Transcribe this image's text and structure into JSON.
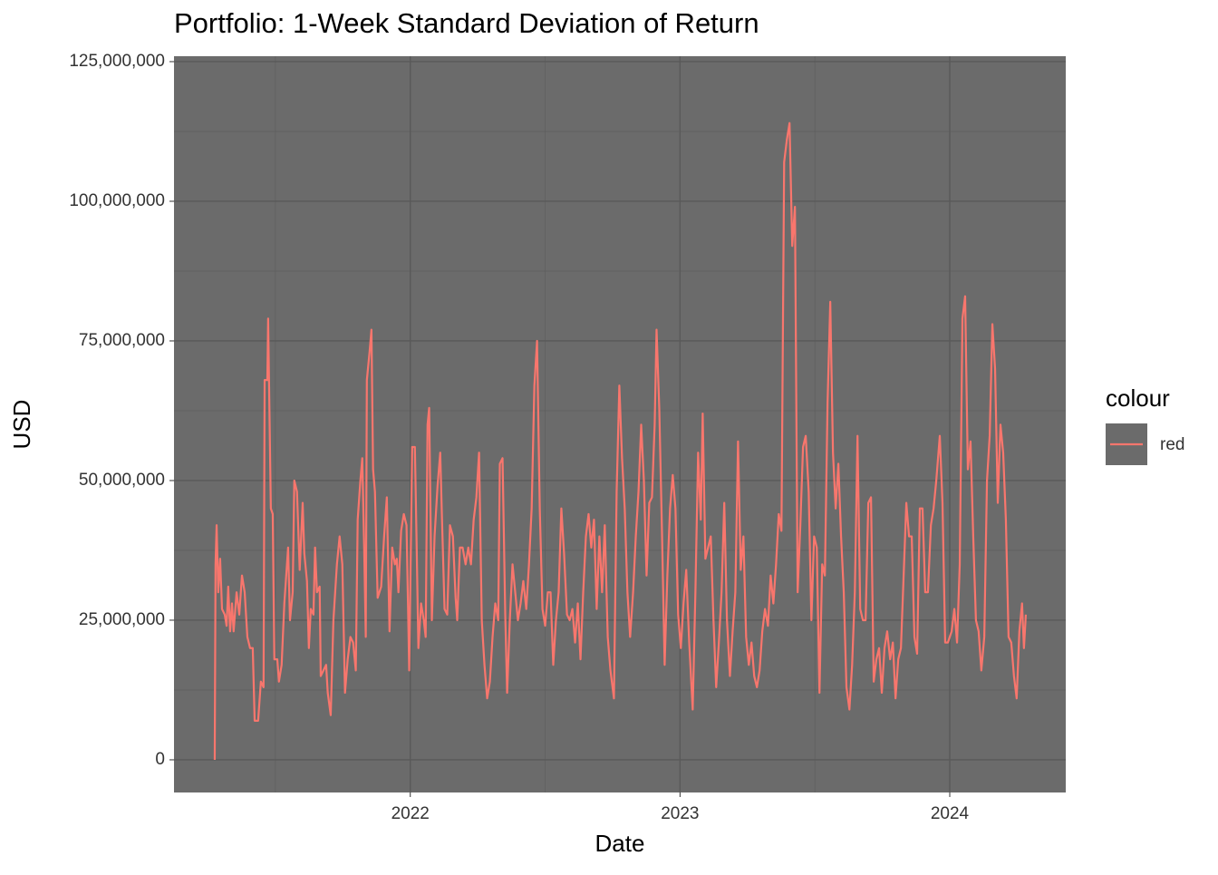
{
  "chart_data": {
    "type": "line",
    "title": "Portfolio: 1-Week Standard Deviation of Return",
    "x_label": "Date",
    "y_label": "USD",
    "legend_title": "colour",
    "legend_position": "right",
    "grid": true,
    "background": "#6b6b6b",
    "grid_color": "#595959",
    "xlim": [
      2021.124,
      2024.43
    ],
    "xticks": [
      2022,
      2023,
      2024
    ],
    "ylim": [
      -5850000,
      125970000
    ],
    "yticks": [
      {
        "value": 0,
        "label": "0"
      },
      {
        "value": 25000000,
        "label": "25,000,000"
      },
      {
        "value": 50000000,
        "label": "50,000,000"
      },
      {
        "value": 75000000,
        "label": "75,000,000"
      },
      {
        "value": 100000000,
        "label": "100,000,000"
      },
      {
        "value": 125000000,
        "label": "125,000,000"
      }
    ],
    "x": [
      2021.275,
      2021.278,
      2021.282,
      2021.288,
      2021.295,
      2021.302,
      2021.312,
      2021.319,
      2021.325,
      2021.332,
      2021.339,
      2021.345,
      2021.356,
      2021.366,
      2021.376,
      2021.386,
      2021.396,
      2021.406,
      2021.416,
      2021.423,
      2021.436,
      2021.446,
      2021.456,
      2021.46,
      2021.47,
      2021.473,
      2021.483,
      2021.49,
      2021.496,
      2021.507,
      2021.513,
      2021.523,
      2021.533,
      2021.547,
      2021.554,
      2021.564,
      2021.57,
      2021.58,
      2021.59,
      2021.601,
      2021.607,
      2021.617,
      2021.624,
      2021.631,
      2021.641,
      2021.647,
      2021.654,
      2021.664,
      2021.668,
      2021.678,
      2021.688,
      2021.694,
      2021.705,
      2021.715,
      2021.728,
      2021.738,
      2021.748,
      2021.758,
      2021.768,
      2021.778,
      2021.788,
      2021.798,
      2021.805,
      2021.815,
      2021.822,
      2021.829,
      2021.835,
      2021.839,
      2021.849,
      2021.856,
      2021.862,
      2021.869,
      2021.879,
      2021.892,
      2021.903,
      2021.913,
      2021.923,
      2021.933,
      2021.943,
      2021.95,
      2021.956,
      2021.966,
      2021.976,
      2021.986,
      2021.996,
      2022.007,
      2022.017,
      2022.023,
      2022.03,
      2022.04,
      2022.05,
      2022.057,
      2022.064,
      2022.07,
      2022.08,
      2022.09,
      2022.101,
      2022.111,
      2022.117,
      2022.127,
      2022.137,
      2022.147,
      2022.158,
      2022.168,
      2022.174,
      2022.184,
      2022.194,
      2022.205,
      2022.215,
      2022.225,
      2022.235,
      2022.245,
      2022.255,
      2022.265,
      2022.275,
      2022.285,
      2022.295,
      2022.305,
      2022.315,
      2022.326,
      2022.332,
      2022.342,
      2022.352,
      2022.359,
      2022.369,
      2022.379,
      2022.389,
      2022.399,
      2022.409,
      2022.419,
      2022.43,
      2022.44,
      2022.45,
      2022.46,
      2022.47,
      2022.48,
      2022.49,
      2022.5,
      2022.51,
      2022.52,
      2022.53,
      2022.54,
      2022.55,
      2022.56,
      2022.57,
      2022.581,
      2022.591,
      2022.601,
      2022.611,
      2022.621,
      2022.631,
      2022.641,
      2022.651,
      2022.661,
      2022.671,
      2022.681,
      2022.691,
      2022.701,
      2022.711,
      2022.721,
      2022.732,
      2022.742,
      2022.755,
      2022.765,
      2022.775,
      2022.785,
      2022.795,
      2022.805,
      2022.815,
      2022.826,
      2022.836,
      2022.846,
      2022.856,
      2022.866,
      2022.876,
      2022.886,
      2022.896,
      2022.906,
      2022.913,
      2022.923,
      2022.933,
      2022.943,
      2022.953,
      2022.963,
      2022.973,
      2022.983,
      2022.993,
      2023.003,
      2023.013,
      2023.023,
      2023.034,
      2023.047,
      2023.057,
      2023.067,
      2023.077,
      2023.084,
      2023.094,
      2023.104,
      2023.114,
      2023.124,
      2023.134,
      2023.144,
      2023.154,
      2023.164,
      2023.174,
      2023.185,
      2023.195,
      2023.205,
      2023.215,
      2023.225,
      2023.235,
      2023.245,
      2023.255,
      2023.265,
      2023.275,
      2023.285,
      2023.295,
      2023.305,
      2023.315,
      2023.326,
      2023.336,
      2023.346,
      2023.356,
      2023.366,
      2023.376,
      2023.386,
      2023.396,
      2023.406,
      2023.416,
      2023.426,
      2023.436,
      2023.446,
      2023.456,
      2023.466,
      2023.477,
      2023.487,
      2023.497,
      2023.507,
      2023.517,
      2023.527,
      2023.537,
      2023.547,
      2023.557,
      2023.567,
      2023.577,
      2023.587,
      2023.597,
      2023.607,
      2023.617,
      2023.628,
      2023.638,
      2023.648,
      2023.658,
      2023.668,
      2023.678,
      2023.688,
      2023.698,
      2023.708,
      2023.718,
      2023.728,
      2023.738,
      2023.748,
      2023.758,
      2023.768,
      2023.779,
      2023.789,
      2023.799,
      2023.809,
      2023.819,
      2023.829,
      2023.839,
      2023.849,
      2023.859,
      2023.869,
      2023.879,
      2023.889,
      2023.899,
      2023.909,
      2023.919,
      2023.93,
      2023.94,
      2023.95,
      2023.963,
      2023.973,
      2023.983,
      2023.993,
      2024.007,
      2024.017,
      2024.027,
      2024.037,
      2024.047,
      2024.057,
      2024.067,
      2024.077,
      2024.087,
      2024.097,
      2024.107,
      2024.117,
      2024.128,
      2024.138,
      2024.148,
      2024.158,
      2024.168,
      2024.178,
      2024.188,
      2024.198,
      2024.208,
      2024.218,
      2024.228,
      2024.238,
      2024.248,
      2024.258,
      2024.268,
      2024.275,
      2024.282
    ],
    "series": [
      {
        "name": "red",
        "color": "#F8766D",
        "values": [
          0,
          35000000,
          42000000,
          30000000,
          36000000,
          27000000,
          26000000,
          24000000,
          31000000,
          23000000,
          28000000,
          23000000,
          30000000,
          26000000,
          33000000,
          30000000,
          22000000,
          20000000,
          20000000,
          7000000,
          7000000,
          14000000,
          13000000,
          68000000,
          68000000,
          79000000,
          45000000,
          44000000,
          18000000,
          18000000,
          14000000,
          17000000,
          28000000,
          38000000,
          25000000,
          30000000,
          50000000,
          48000000,
          34000000,
          46000000,
          37000000,
          32000000,
          20000000,
          27000000,
          26000000,
          38000000,
          30000000,
          31000000,
          15000000,
          16000000,
          17000000,
          12000000,
          8000000,
          25000000,
          35000000,
          40000000,
          35000000,
          12000000,
          18000000,
          22000000,
          21000000,
          16000000,
          43000000,
          50000000,
          54000000,
          38000000,
          22000000,
          68000000,
          73000000,
          77000000,
          52000000,
          48000000,
          29000000,
          31000000,
          40000000,
          47000000,
          23000000,
          38000000,
          35000000,
          36000000,
          30000000,
          41000000,
          44000000,
          42000000,
          16000000,
          56000000,
          56000000,
          40000000,
          20000000,
          28000000,
          25000000,
          22000000,
          60000000,
          63000000,
          25000000,
          40000000,
          49000000,
          55000000,
          44000000,
          27000000,
          26000000,
          42000000,
          40000000,
          29000000,
          25000000,
          38000000,
          38000000,
          35000000,
          38000000,
          35000000,
          43000000,
          47000000,
          55000000,
          25000000,
          17000000,
          11000000,
          14000000,
          22000000,
          28000000,
          25000000,
          53000000,
          54000000,
          26000000,
          12000000,
          25000000,
          35000000,
          30000000,
          25000000,
          28000000,
          32000000,
          27000000,
          35000000,
          45000000,
          67000000,
          75000000,
          45000000,
          27000000,
          24000000,
          30000000,
          30000000,
          17000000,
          25000000,
          30000000,
          45000000,
          37000000,
          26000000,
          25000000,
          27000000,
          21000000,
          28000000,
          18000000,
          30000000,
          40000000,
          44000000,
          38000000,
          43000000,
          27000000,
          40000000,
          30000000,
          42000000,
          22000000,
          16000000,
          11000000,
          48000000,
          67000000,
          54000000,
          45000000,
          30000000,
          22000000,
          30000000,
          40000000,
          48000000,
          60000000,
          50000000,
          33000000,
          46000000,
          47000000,
          60000000,
          77000000,
          63000000,
          41000000,
          17000000,
          33000000,
          45000000,
          51000000,
          45000000,
          26000000,
          20000000,
          28000000,
          34000000,
          21000000,
          9000000,
          30000000,
          55000000,
          43000000,
          62000000,
          36000000,
          38000000,
          40000000,
          25000000,
          13000000,
          21000000,
          30000000,
          46000000,
          25000000,
          15000000,
          23000000,
          30000000,
          57000000,
          34000000,
          40000000,
          22000000,
          17000000,
          21000000,
          15000000,
          13000000,
          16000000,
          23000000,
          27000000,
          24000000,
          33000000,
          28000000,
          35000000,
          44000000,
          41000000,
          107000000,
          111000000,
          114000000,
          92000000,
          99000000,
          30000000,
          42000000,
          56000000,
          58000000,
          48000000,
          25000000,
          40000000,
          38000000,
          12000000,
          35000000,
          33000000,
          64000000,
          82000000,
          55000000,
          45000000,
          53000000,
          40000000,
          30000000,
          13000000,
          9000000,
          17000000,
          30000000,
          58000000,
          27000000,
          25000000,
          25000000,
          46000000,
          47000000,
          14000000,
          18000000,
          20000000,
          12000000,
          20000000,
          23000000,
          18000000,
          21000000,
          11000000,
          18000000,
          20000000,
          33000000,
          46000000,
          40000000,
          40000000,
          22000000,
          19000000,
          45000000,
          45000000,
          30000000,
          30000000,
          42000000,
          45000000,
          50000000,
          58000000,
          46000000,
          21000000,
          21000000,
          23000000,
          27000000,
          21000000,
          35000000,
          79000000,
          83000000,
          52000000,
          57000000,
          40000000,
          25000000,
          23000000,
          16000000,
          22000000,
          50000000,
          58000000,
          78000000,
          70000000,
          46000000,
          60000000,
          55000000,
          43000000,
          22000000,
          21000000,
          15000000,
          11000000,
          23000000,
          28000000,
          20000000,
          26000000
        ]
      }
    ]
  }
}
